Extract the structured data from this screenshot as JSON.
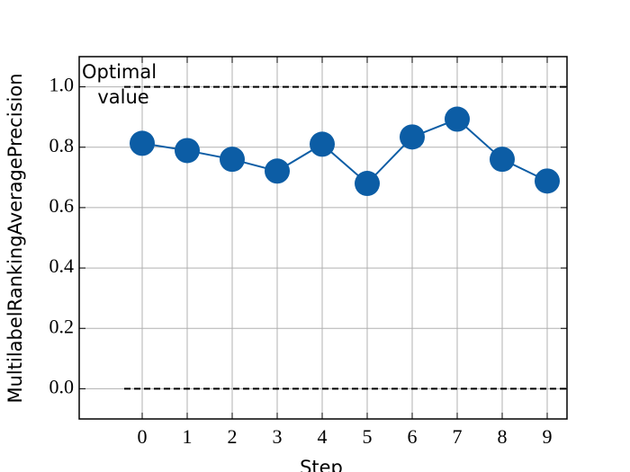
{
  "chart_data": {
    "type": "line",
    "x": [
      0,
      1,
      2,
      3,
      4,
      5,
      6,
      7,
      8,
      9
    ],
    "series": [
      {
        "name": "MultilabelRankingAveragePrecision",
        "color": "#0c5da5",
        "values": [
          0.813,
          0.789,
          0.76,
          0.721,
          0.81,
          0.68,
          0.834,
          0.893,
          0.76,
          0.688
        ]
      }
    ],
    "xlabel": "Step",
    "ylabel": "MultilabelRankingAveragePrecision",
    "xlim": [
      -1.4,
      9.44
    ],
    "ylim": [
      -0.1,
      1.1
    ],
    "xticks": [
      0,
      1,
      2,
      3,
      4,
      5,
      6,
      7,
      8,
      9
    ],
    "yticks": [
      {
        "value": 0,
        "label": "0.0"
      },
      {
        "value": 0.2,
        "label": "0.2"
      },
      {
        "value": 0.4,
        "label": "0.4"
      },
      {
        "value": 0.6,
        "label": "0.6"
      },
      {
        "value": 0.8,
        "label": "0.8"
      },
      {
        "value": 1,
        "label": "1.0"
      }
    ],
    "grid": true,
    "hlines": [
      {
        "y": 1,
        "xmin": -0.4
      },
      {
        "y": 0,
        "xmin": -0.4
      }
    ],
    "annotation": [
      "Optimal",
      "value"
    ]
  }
}
